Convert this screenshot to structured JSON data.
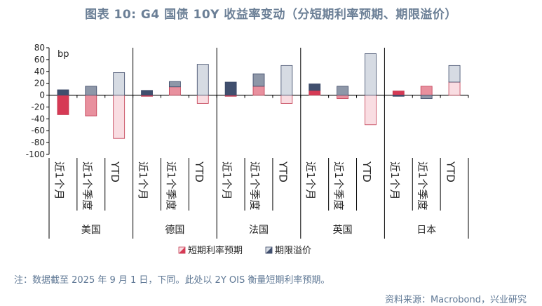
{
  "title": "图表 10: G4 国债 10Y 收益率变动（分短期利率预期、期限溢价）",
  "note": "注：数据截至 2025 年 9 月 1 日，下同。此处以 2Y OIS 衡量短期利率预期。",
  "source": "资料来源：Macrobond，兴业研究",
  "chart_data": {
    "type": "bar",
    "stacked": true,
    "unit": "bp",
    "ylim": [
      -100,
      80
    ],
    "yticks": [
      80,
      60,
      40,
      20,
      0,
      -20,
      -40,
      -60,
      -80,
      -100
    ],
    "groups": [
      "美国",
      "德国",
      "法国",
      "英国",
      "日本"
    ],
    "periods": [
      "近1个月",
      "近1个季度",
      "YTD"
    ],
    "colors": {
      "month_rate": "#d63a55",
      "quarter_rate": "#e8909e",
      "ytd_rate": "#f9dde2",
      "month_term": "#404f6e",
      "quarter_term": "#8e97a8",
      "ytd_term": "#d6dbe3"
    },
    "series": [
      {
        "name": "短期利率预期",
        "key": "rate",
        "values": [
          -33,
          -35,
          -73,
          -2,
          14,
          -14,
          -2,
          15,
          -14,
          8,
          -6,
          -50,
          7,
          15,
          22
        ]
      },
      {
        "name": "期限溢价",
        "key": "term",
        "values": [
          9,
          15,
          38,
          8,
          9,
          52,
          22,
          21,
          50,
          11,
          15,
          70,
          -2,
          -6,
          28
        ]
      }
    ],
    "grid": false,
    "legend": "bottom"
  }
}
